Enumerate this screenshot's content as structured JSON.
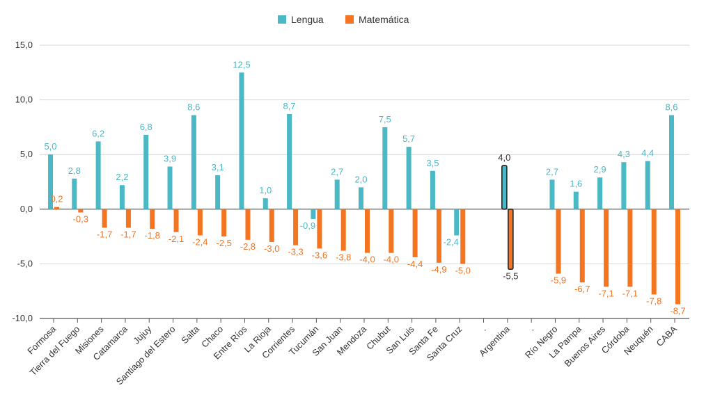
{
  "chart_data": {
    "type": "bar",
    "categories": [
      "Formosa",
      "Tierra del Fuego",
      "Misiones",
      "Catamarca",
      "Jujuy",
      "Santiago del Estero",
      "Salta",
      "Chaco",
      "Entre Ríos",
      "La Rioja",
      "Corrientes",
      "Tucumán",
      "San Juan",
      "Mendoza",
      "Chubut",
      "San Luis",
      "Santa Fe",
      "Santa Cruz",
      ".",
      "Argentina",
      ".",
      "Río Negro",
      "La Pampa",
      "Buenos Aires",
      "Córdoba",
      "Neuquén",
      "CABA"
    ],
    "series": [
      {
        "name": "Lengua",
        "color": "#4bb8c6",
        "values": [
          5.0,
          2.8,
          6.2,
          2.2,
          6.8,
          3.9,
          8.6,
          3.1,
          12.5,
          1.0,
          8.7,
          -0.9,
          2.7,
          2.0,
          7.5,
          5.7,
          3.5,
          -2.4,
          null,
          4.0,
          null,
          2.7,
          1.6,
          2.9,
          4.3,
          4.4,
          8.6
        ],
        "labels": [
          "5,0",
          "2,8",
          "6,2",
          "2,2",
          "6,8",
          "3,9",
          "8,6",
          "3,1",
          "12,5",
          "1,0",
          "8,7",
          "-0,9",
          "2,7",
          "2,0",
          "7,5",
          "5,7",
          "3,5",
          "-2,4",
          "",
          "4,0",
          "",
          "2,7",
          "1,6",
          "2,9",
          "4,3",
          "4,4",
          "8,6"
        ]
      },
      {
        "name": "Matemática",
        "color": "#f5741f",
        "values": [
          0.2,
          -0.3,
          -1.7,
          -1.7,
          -1.8,
          -2.1,
          -2.4,
          -2.5,
          -2.8,
          -3.0,
          -3.3,
          -3.6,
          -3.8,
          -4.0,
          -4.0,
          -4.4,
          -4.9,
          -5.0,
          null,
          -5.5,
          null,
          -5.9,
          -6.7,
          -7.1,
          -7.1,
          -7.8,
          -8.7
        ],
        "labels": [
          "0,2",
          "-0,3",
          "-1,7",
          "-1,7",
          "-1,8",
          "-2,1",
          "-2,4",
          "-2,5",
          "-2,8",
          "-3,0",
          "-3,3",
          "-3,6",
          "-3,8",
          "-4,0",
          "-4,0",
          "-4,4",
          "-4,9",
          "-5,0",
          "",
          "-5,5",
          "",
          "-5,9",
          "-6,7",
          "-7,1",
          "-7,1",
          "-7,8",
          "-8,7"
        ]
      }
    ],
    "highlight_category": "Argentina",
    "highlight_label_color": "#333333",
    "ylim": [
      -10,
      15
    ],
    "yticks": [
      "-10,0",
      "-5,0",
      "0,0",
      "5,0",
      "10,0",
      "15,0"
    ],
    "ytick_values": [
      -10,
      -5,
      0,
      5,
      10,
      15
    ],
    "grid": true,
    "legend": "top-center"
  }
}
